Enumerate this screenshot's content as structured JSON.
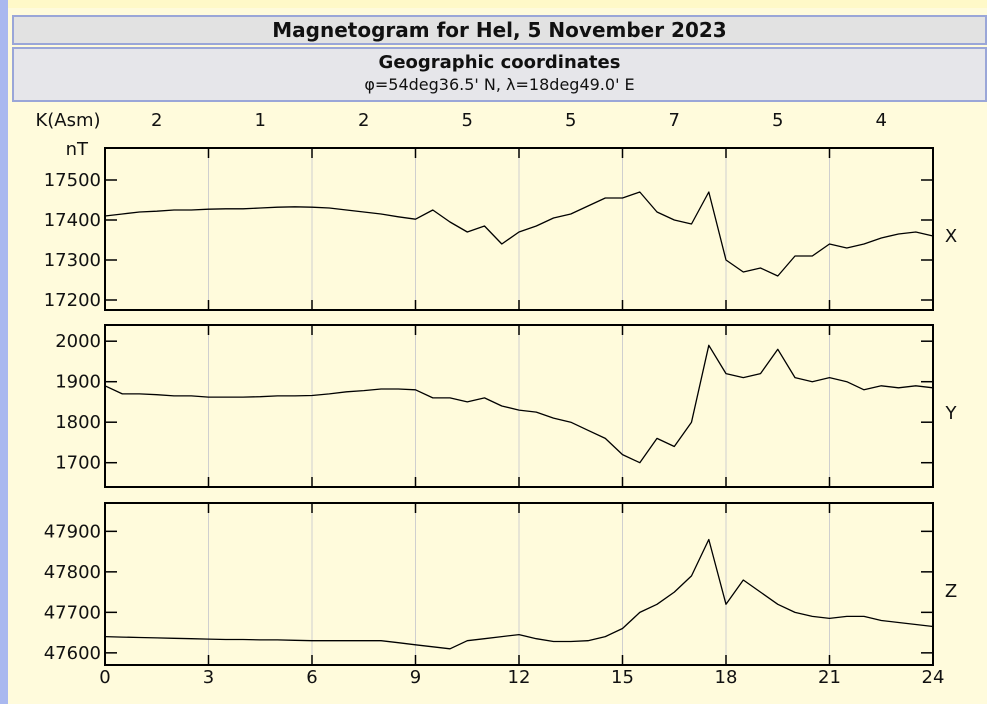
{
  "header": {
    "title": "Magnetogram for Hel, 5 November 2023",
    "subtitle": "Geographic coordinates",
    "coordinates": "φ=54deg36.5' N, λ=18deg49.0' E"
  },
  "k_index": {
    "label": "K(Asm)",
    "values": [
      2,
      1,
      2,
      5,
      5,
      7,
      5,
      4
    ]
  },
  "chart_data": [
    {
      "type": "line",
      "ylabel": "nT",
      "x": [
        0,
        0.5,
        1,
        1.5,
        2,
        2.5,
        3,
        3.5,
        4,
        4.5,
        5,
        5.5,
        6,
        6.5,
        7,
        7.5,
        8,
        8.5,
        9,
        9.5,
        10,
        10.5,
        11,
        11.5,
        12,
        12.5,
        13,
        13.5,
        14,
        14.5,
        15,
        15.5,
        16,
        16.5,
        17,
        17.5,
        18,
        18.5,
        19,
        19.5,
        20,
        20.5,
        21,
        21.5,
        22,
        22.5,
        23,
        23.5,
        24
      ],
      "series": [
        {
          "name": "X",
          "color": "#000000",
          "values": [
            17410,
            17415,
            17420,
            17422,
            17425,
            17425,
            17427,
            17428,
            17428,
            17430,
            17432,
            17433,
            17432,
            17430,
            17425,
            17420,
            17415,
            17408,
            17402,
            17425,
            17395,
            17370,
            17385,
            17340,
            17370,
            17385,
            17405,
            17415,
            17435,
            17455,
            17455,
            17470,
            17420,
            17400,
            17390,
            17470,
            17300,
            17270,
            17280,
            17260,
            17310,
            17310,
            17340,
            17330,
            17340,
            17355,
            17365,
            17370,
            17360
          ]
        }
      ],
      "xlim": [
        0,
        24
      ],
      "xticks": [
        0,
        3,
        6,
        9,
        12,
        15,
        18,
        21,
        24
      ],
      "ylim": [
        17175,
        17580
      ],
      "yticks": [
        17200,
        17300,
        17400,
        17500
      ],
      "grid": true
    },
    {
      "type": "line",
      "x": [
        0,
        0.5,
        1,
        1.5,
        2,
        2.5,
        3,
        3.5,
        4,
        4.5,
        5,
        5.5,
        6,
        6.5,
        7,
        7.5,
        8,
        8.5,
        9,
        9.5,
        10,
        10.5,
        11,
        11.5,
        12,
        12.5,
        13,
        13.5,
        14,
        14.5,
        15,
        15.5,
        16,
        16.5,
        17,
        17.5,
        18,
        18.5,
        19,
        19.5,
        20,
        20.5,
        21,
        21.5,
        22,
        22.5,
        23,
        23.5,
        24
      ],
      "series": [
        {
          "name": "Y",
          "color": "#000000",
          "values": [
            1890,
            1870,
            1870,
            1868,
            1865,
            1865,
            1862,
            1862,
            1862,
            1863,
            1865,
            1865,
            1866,
            1870,
            1875,
            1878,
            1882,
            1882,
            1880,
            1860,
            1860,
            1850,
            1860,
            1840,
            1830,
            1825,
            1810,
            1800,
            1780,
            1760,
            1720,
            1700,
            1760,
            1740,
            1800,
            1990,
            1920,
            1910,
            1920,
            1980,
            1910,
            1900,
            1910,
            1900,
            1880,
            1890,
            1885,
            1890,
            1885
          ]
        }
      ],
      "xlim": [
        0,
        24
      ],
      "xticks": [
        0,
        3,
        6,
        9,
        12,
        15,
        18,
        21,
        24
      ],
      "ylim": [
        1640,
        2040
      ],
      "yticks": [
        1700,
        1800,
        1900,
        2000
      ],
      "grid": true
    },
    {
      "type": "line",
      "x": [
        0,
        0.5,
        1,
        1.5,
        2,
        2.5,
        3,
        3.5,
        4,
        4.5,
        5,
        5.5,
        6,
        6.5,
        7,
        7.5,
        8,
        8.5,
        9,
        9.5,
        10,
        10.5,
        11,
        11.5,
        12,
        12.5,
        13,
        13.5,
        14,
        14.5,
        15,
        15.5,
        16,
        16.5,
        17,
        17.5,
        18,
        18.5,
        19,
        19.5,
        20,
        20.5,
        21,
        21.5,
        22,
        22.5,
        23,
        23.5,
        24
      ],
      "series": [
        {
          "name": "Z",
          "color": "#000000",
          "values": [
            47640,
            47639,
            47638,
            47637,
            47636,
            47635,
            47634,
            47633,
            47633,
            47632,
            47632,
            47631,
            47630,
            47630,
            47630,
            47630,
            47630,
            47625,
            47620,
            47615,
            47610,
            47630,
            47635,
            47640,
            47645,
            47635,
            47628,
            47628,
            47630,
            47640,
            47660,
            47700,
            47720,
            47750,
            47790,
            47880,
            47720,
            47780,
            47750,
            47720,
            47700,
            47690,
            47685,
            47690,
            47690,
            47680,
            47675,
            47670,
            47665
          ]
        }
      ],
      "xlim": [
        0,
        24
      ],
      "xticks": [
        0,
        3,
        6,
        9,
        12,
        15,
        18,
        21,
        24
      ],
      "show_xtick_labels": true,
      "ylim": [
        47570,
        47970
      ],
      "yticks": [
        47600,
        47700,
        47800,
        47900
      ],
      "grid": true
    }
  ]
}
